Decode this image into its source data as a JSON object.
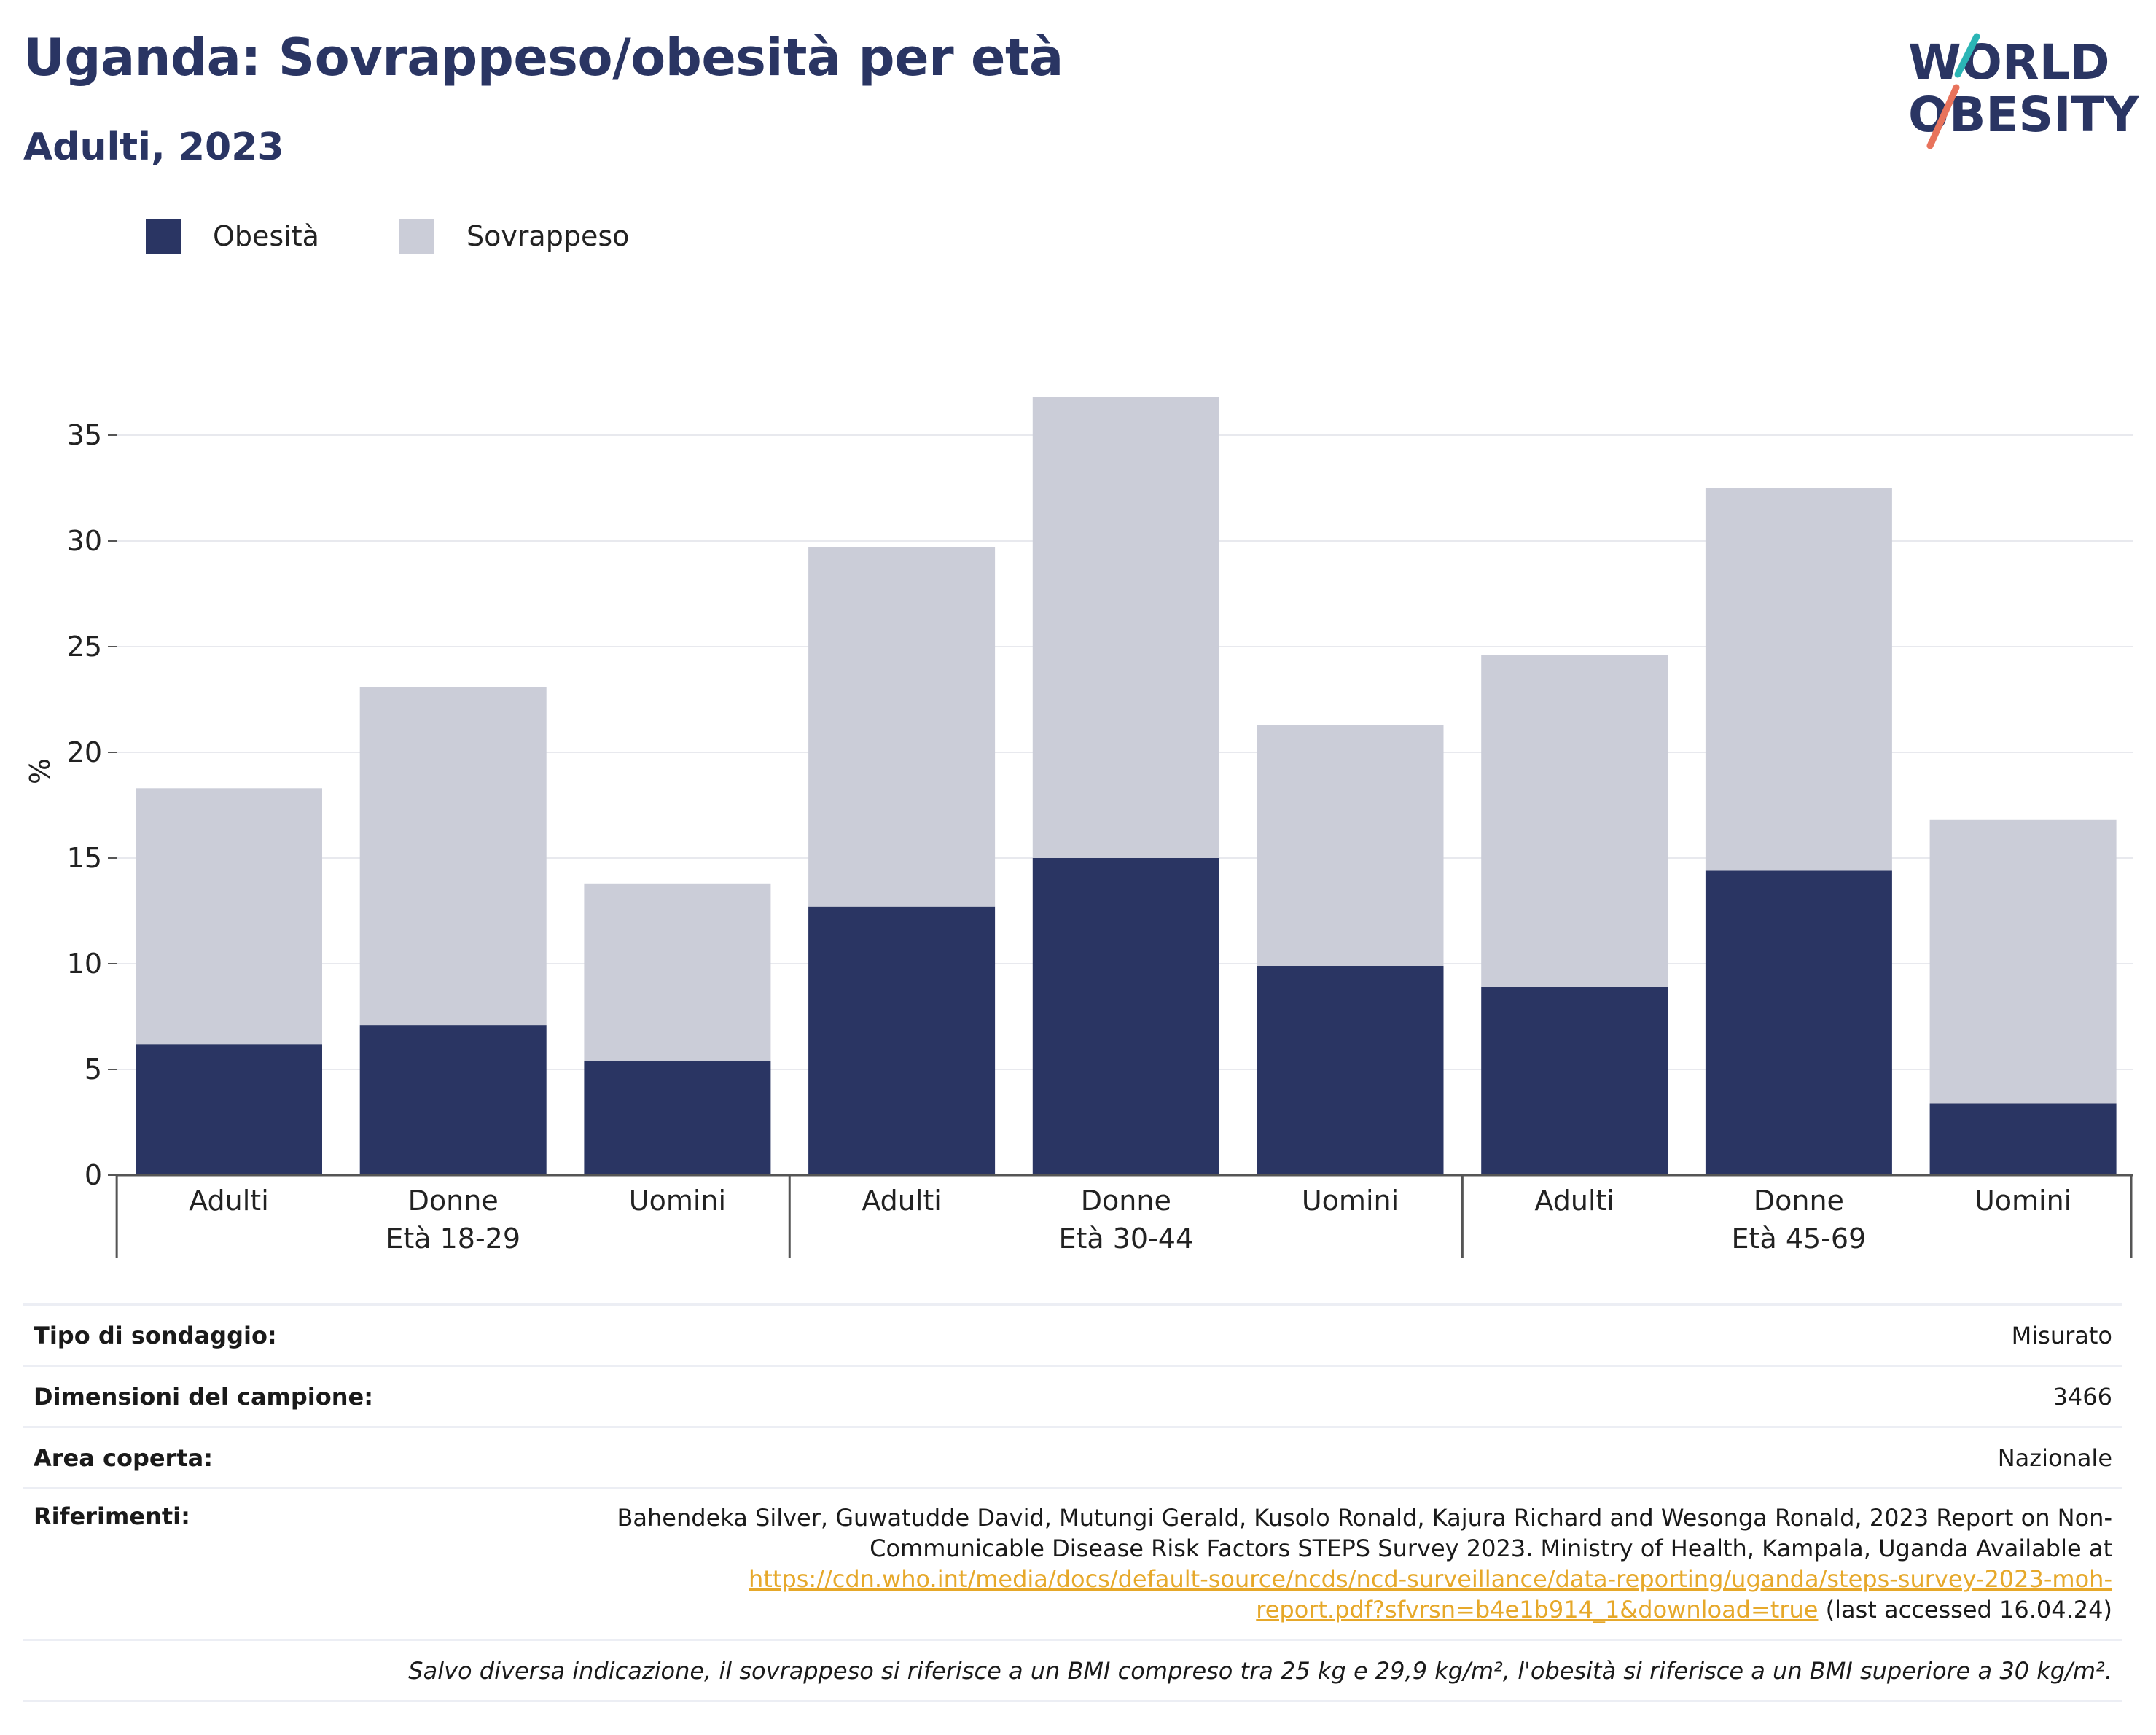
{
  "header": {
    "title": "Uganda: Sovrappeso/obesità per età",
    "subtitle": "Adulti, 2023",
    "logo_line1": "WORLD",
    "logo_line2": "OBESITY"
  },
  "colors": {
    "obesity": "#2a3563",
    "overweight": "#cbcdd8",
    "title": "#2a3563",
    "link": "#e6a82a",
    "logo_teal": "#2bb5b5",
    "logo_coral": "#e8735c"
  },
  "chart_data": {
    "type": "bar",
    "stacked": true,
    "ylabel": "%",
    "ylim": [
      0,
      37
    ],
    "yticks": [
      0,
      5,
      10,
      15,
      20,
      25,
      30,
      35
    ],
    "grid": true,
    "legend_position": "top-left",
    "categories": [
      "Adulti",
      "Donne",
      "Uomini",
      "Adulti",
      "Donne",
      "Uomini",
      "Adulti",
      "Donne",
      "Uomini"
    ],
    "groups": [
      {
        "label": "Età 18-29",
        "start": 0,
        "end": 3
      },
      {
        "label": "Età 30-44",
        "start": 3,
        "end": 6
      },
      {
        "label": "Età 45-69",
        "start": 6,
        "end": 9
      }
    ],
    "series": [
      {
        "name": "Obesità",
        "color": "#2a3563",
        "values": [
          6.2,
          7.1,
          5.4,
          12.7,
          15.0,
          9.9,
          8.9,
          14.4,
          3.4
        ]
      },
      {
        "name": "Sovrappeso",
        "color": "#cbcdd8",
        "values": [
          12.1,
          16.0,
          8.4,
          17.0,
          21.8,
          11.4,
          15.7,
          18.1,
          13.4
        ]
      }
    ]
  },
  "info": {
    "survey_label": "Tipo di sondaggio:",
    "survey_value": "Misurato",
    "sample_label": "Dimensioni del campione:",
    "sample_value": "3466",
    "area_label": "Area coperta:",
    "area_value": "Nazionale",
    "refs_label": "Riferimenti:",
    "refs_line1": "Bahendeka Silver, Guwatudde David, Mutungi Gerald, Kusolo Ronald, Kajura Richard and Wesonga Ronald, 2023 Report on Non-",
    "refs_line2": "Communicable Disease Risk Factors STEPS Survey 2023. Ministry of Health, Kampala, Uganda Available at",
    "refs_link1": "https://cdn.who.int/media/docs/default-source/ncds/ncd-surveillance/data-reporting/uganda/steps-survey-2023-moh-",
    "refs_link2": "report.pdf?sfvrsn=b4e1b914_1&download=true",
    "refs_suffix": " (last accessed 16.04.24)",
    "note": "Salvo diversa indicazione, il sovrappeso si riferisce a un BMI compreso tra 25 kg e 29,9 kg/m², l'obesità si riferisce a un BMI superiore a 30 kg/m²."
  }
}
